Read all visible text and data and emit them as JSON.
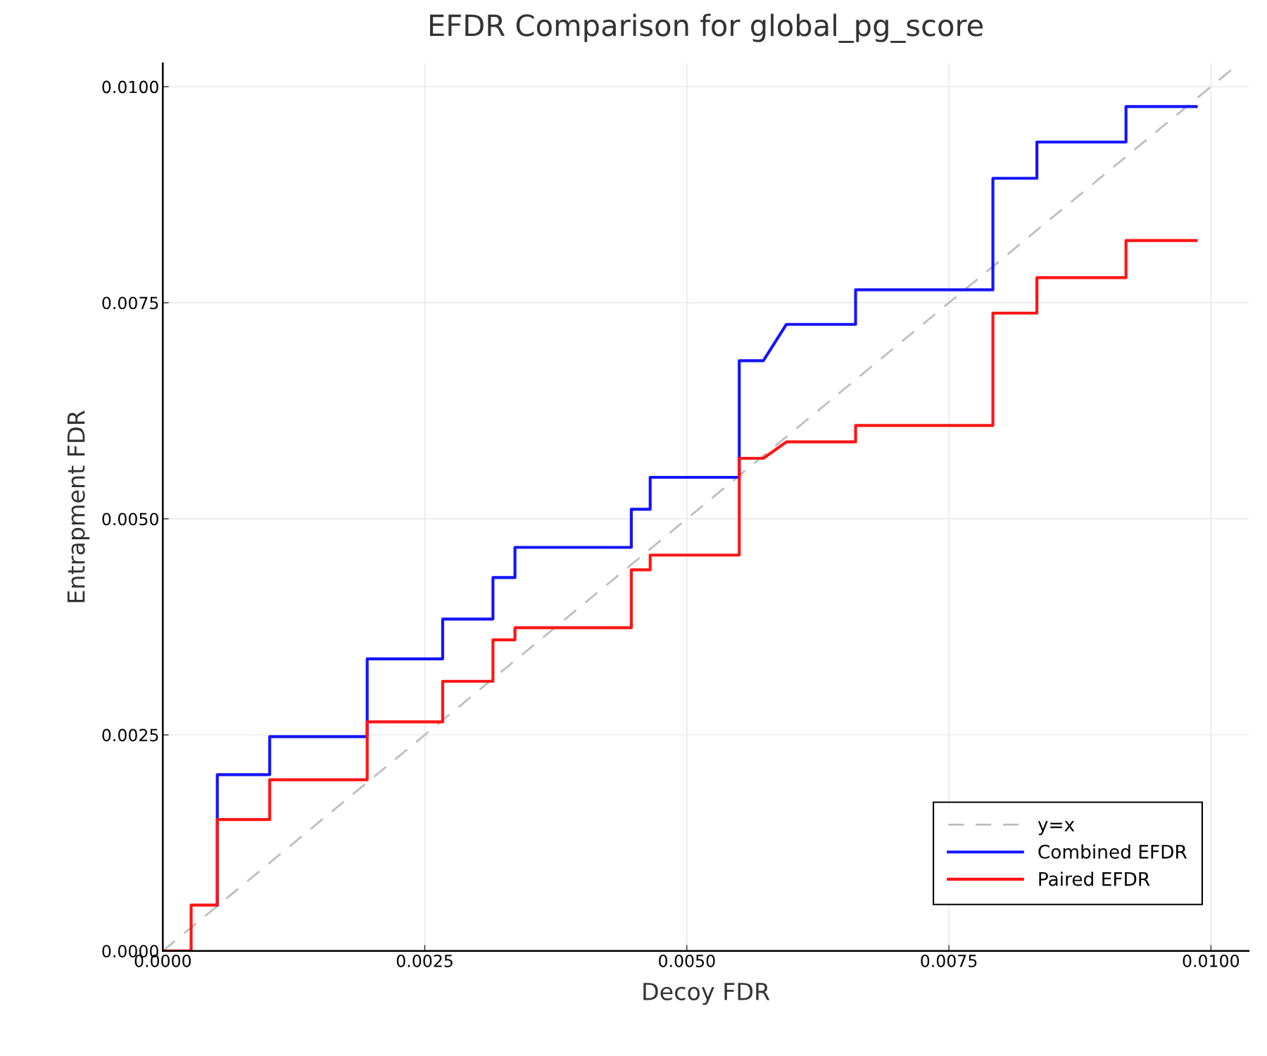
{
  "chart_data": {
    "type": "line",
    "title": "EFDR Comparison for global_pg_score",
    "xlabel": "Decoy FDR",
    "ylabel": "Entrapment FDR",
    "xlim": [
      0,
      0.01036
    ],
    "ylim": [
      0,
      0.01027
    ],
    "xticks": [
      {
        "value": 0,
        "label": "0.0000"
      },
      {
        "value": 0.0025,
        "label": "0.0025"
      },
      {
        "value": 0.005,
        "label": "0.0050"
      },
      {
        "value": 0.0075,
        "label": "0.0075"
      },
      {
        "value": 0.01,
        "label": "0.0100"
      }
    ],
    "yticks": [
      {
        "value": 0,
        "label": "0.0000"
      },
      {
        "value": 0.0025,
        "label": "0.0025"
      },
      {
        "value": 0.005,
        "label": "0.0050"
      },
      {
        "value": 0.0075,
        "label": "0.0075"
      },
      {
        "value": 0.01,
        "label": "0.0100"
      }
    ],
    "grid": true,
    "legend": "bottom right",
    "series": [
      {
        "name": "y=x",
        "color": "#bdbdbd",
        "line_style": "dashed",
        "x": [
          0,
          0.0102
        ],
        "values": [
          0,
          0.0102
        ]
      },
      {
        "name": "Combined EFDR",
        "color": "#1414ff",
        "line_style": "solid",
        "x": [
          0.00052,
          0.00052,
          0.00102,
          0.00102,
          0.00195,
          0.00195,
          0.00267,
          0.00267,
          0.00315,
          0.00315,
          0.00336,
          0.00336,
          0.00447,
          0.00447,
          0.00465,
          0.00465,
          0.0055,
          0.0055,
          0.00573,
          0.00595,
          0.00661,
          0.00661,
          0.00792,
          0.00792,
          0.00834,
          0.00834,
          0.00919,
          0.00919,
          0.00986
        ],
        "values": [
          0.00053,
          0.00204,
          0.00204,
          0.00248,
          0.00248,
          0.00338,
          0.00338,
          0.00384,
          0.00384,
          0.00432,
          0.00432,
          0.00467,
          0.00467,
          0.00511,
          0.00511,
          0.00548,
          0.00548,
          0.00683,
          0.00683,
          0.00725,
          0.00725,
          0.00765,
          0.00765,
          0.00894,
          0.00894,
          0.00936,
          0.00936,
          0.00977,
          0.00977
        ]
      },
      {
        "name": "Paired EFDR",
        "color": "#ff1414",
        "line_style": "solid",
        "x": [
          0,
          0.00027,
          0.00027,
          0.00052,
          0.00052,
          0.00102,
          0.00102,
          0.00195,
          0.00195,
          0.00267,
          0.00267,
          0.00315,
          0.00315,
          0.00336,
          0.00336,
          0.00447,
          0.00447,
          0.00465,
          0.00465,
          0.0055,
          0.0055,
          0.00573,
          0.00595,
          0.00661,
          0.00661,
          0.00792,
          0.00792,
          0.00834,
          0.00834,
          0.00919,
          0.00919,
          0.00986
        ],
        "values": [
          0,
          0,
          0.00053,
          0.00053,
          0.00152,
          0.00152,
          0.00198,
          0.00198,
          0.00265,
          0.00265,
          0.00312,
          0.00312,
          0.0036,
          0.0036,
          0.00374,
          0.00374,
          0.00441,
          0.00441,
          0.00458,
          0.00458,
          0.0057,
          0.0057,
          0.00589,
          0.00589,
          0.00608,
          0.00608,
          0.00738,
          0.00738,
          0.00779,
          0.00779,
          0.00822,
          0.00822
        ]
      }
    ]
  }
}
